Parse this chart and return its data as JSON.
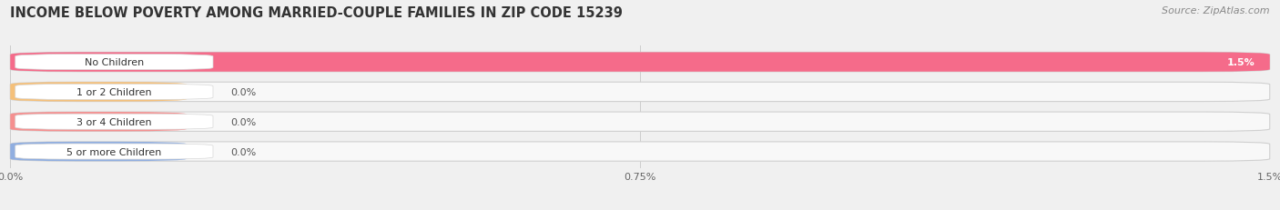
{
  "title": "INCOME BELOW POVERTY AMONG MARRIED-COUPLE FAMILIES IN ZIP CODE 15239",
  "source": "Source: ZipAtlas.com",
  "categories": [
    "No Children",
    "1 or 2 Children",
    "3 or 4 Children",
    "5 or more Children"
  ],
  "values": [
    1.5,
    0.0,
    0.0,
    0.0
  ],
  "bar_colors": [
    "#f56b8a",
    "#f5c07a",
    "#f59090",
    "#90aee0"
  ],
  "xlim": [
    0,
    1.5
  ],
  "xticks": [
    0.0,
    0.75,
    1.5
  ],
  "xticklabels": [
    "0.0%",
    "0.75%",
    "1.5%"
  ],
  "background_color": "#f0f0f0",
  "title_fontsize": 10.5,
  "source_fontsize": 8,
  "label_fontsize": 8,
  "value_fontsize": 8
}
